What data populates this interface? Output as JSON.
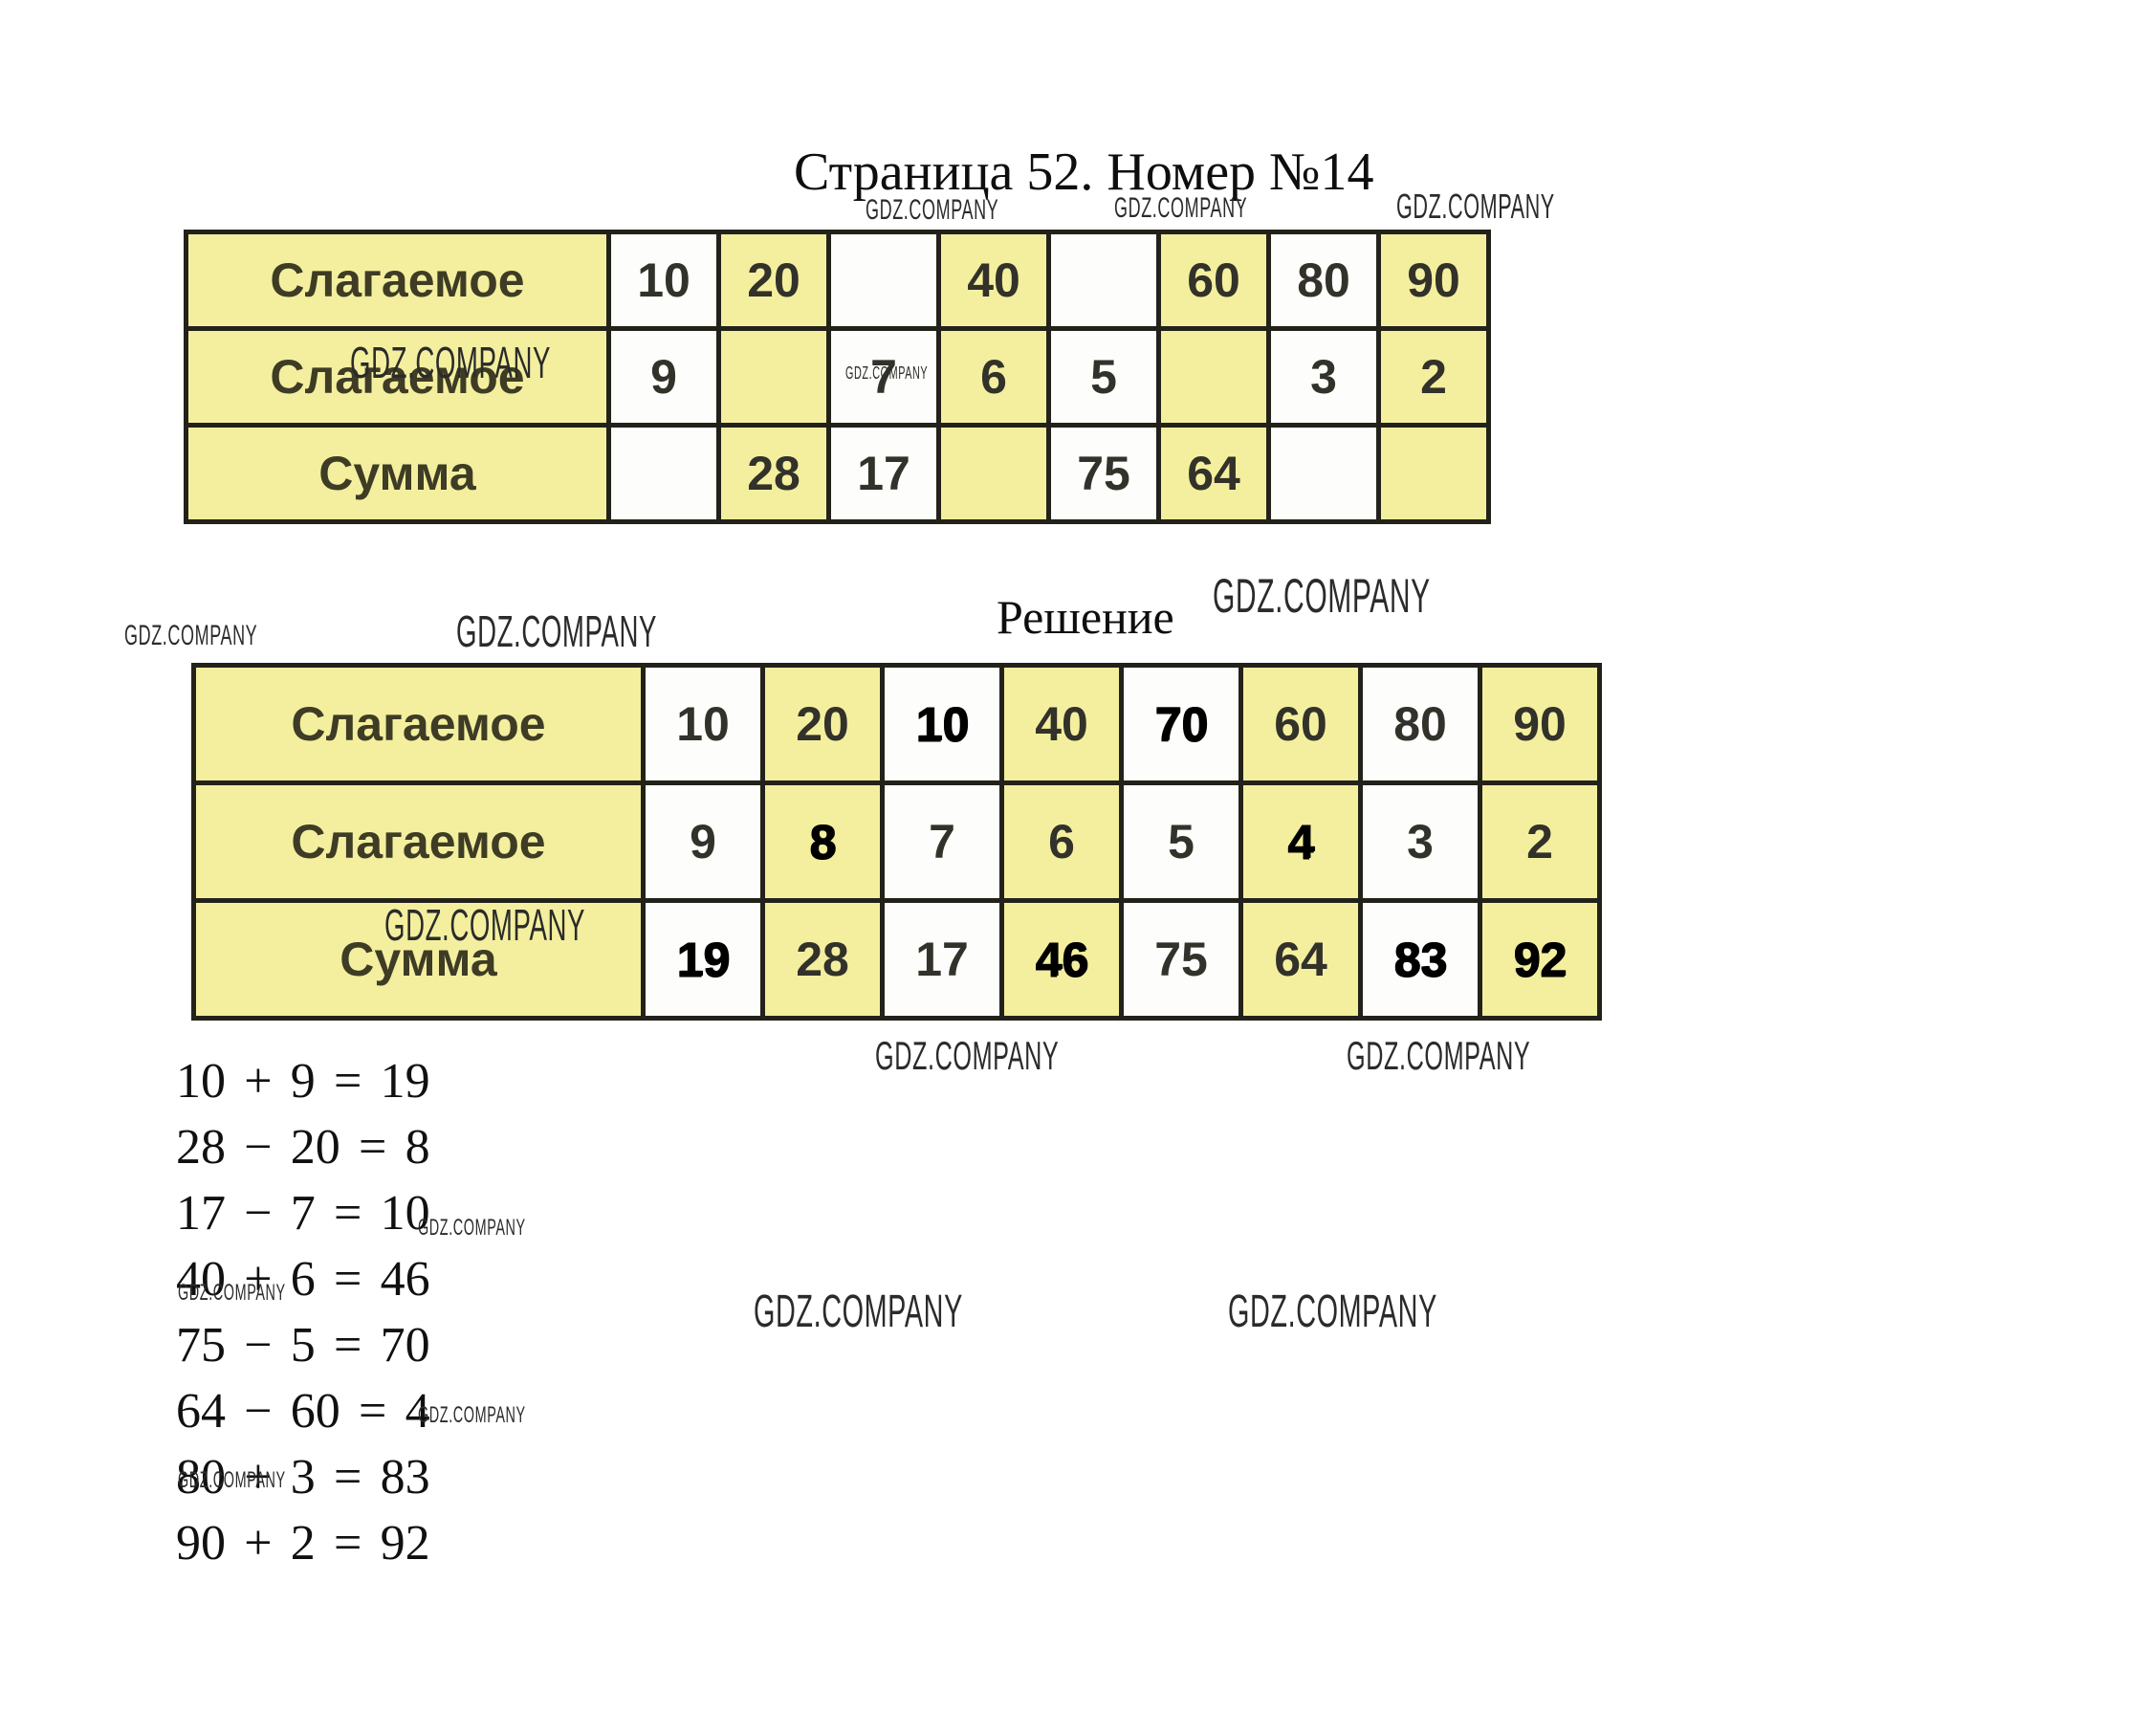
{
  "page": {
    "title": "Страница 52. Номер №14",
    "solution_heading": "Решение",
    "watermark": "GDZ.COMPANY"
  },
  "problem_table": {
    "row_labels_note": "addend / addend / sum",
    "rows": [
      {
        "label": "Слагаемое",
        "cells": [
          "10",
          "20",
          "",
          "40",
          "",
          "60",
          "80",
          "90"
        ]
      },
      {
        "label": "Слагаемое",
        "cells": [
          "9",
          "",
          "7",
          "6",
          "5",
          "",
          "3",
          "2"
        ]
      },
      {
        "label": "Сумма",
        "cells": [
          "",
          "28",
          "17",
          "",
          "75",
          "64",
          "",
          ""
        ]
      }
    ]
  },
  "solution_table": {
    "rows": [
      {
        "label": "Слагаемое",
        "cells": [
          "10",
          "20",
          "10",
          "40",
          "70",
          "60",
          "80",
          "90"
        ],
        "answer_cols": [
          2,
          4
        ]
      },
      {
        "label": "Слагаемое",
        "cells": [
          "9",
          "8",
          "7",
          "6",
          "5",
          "4",
          "3",
          "2"
        ],
        "answer_cols": [
          1,
          5
        ]
      },
      {
        "label": "Сумма",
        "cells": [
          "19",
          "28",
          "17",
          "46",
          "75",
          "64",
          "83",
          "92"
        ],
        "answer_cols": [
          0,
          3,
          6,
          7
        ]
      }
    ]
  },
  "equations": [
    "10 + 9 = 19",
    "28 − 20 = 8",
    "17 − 7 = 10",
    "40 + 6 = 46",
    "75 − 5 = 70",
    "64 − 60 = 4",
    "80 + 3 = 83",
    "90 + 2 = 92"
  ],
  "colors": {
    "cell_yellow": "#f3ef9e",
    "cell_white": "#fdfdfb",
    "grid_border": "#23221a",
    "label_text": "#3e3c25",
    "number_text": "#32312a",
    "answer_text": "#000000",
    "watermark_text_color": "#2b2b2b"
  }
}
